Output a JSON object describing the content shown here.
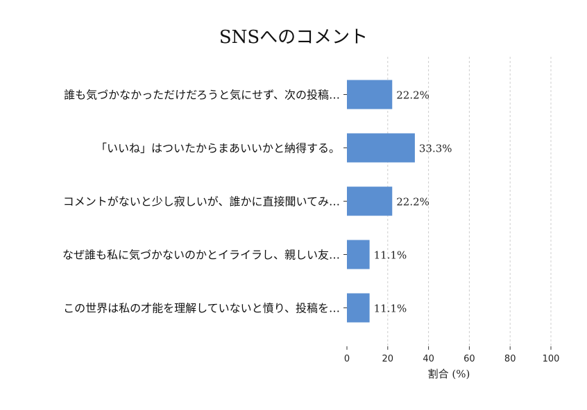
{
  "chart_data": {
    "type": "bar",
    "orientation": "horizontal",
    "title": "SNSへのコメント",
    "xlabel": "割合 (%)",
    "ylabel": "",
    "xlim": [
      0,
      100
    ],
    "xticks": [
      0,
      20,
      40,
      60,
      80,
      100
    ],
    "grid": "x-dashed",
    "color": "#5b8fd1",
    "categories": [
      "誰も気づかなかっただけだろうと気にせず、次の投稿…",
      "「いいね」はついたからまあいいかと納得する。",
      "コメントがないと少し寂しいが、誰かに直接聞いてみ…",
      "なぜ誰も私に気づかないのかとイライラし、親しい友…",
      "この世界は私の才能を理解していないと憤り、投稿を…"
    ],
    "values": [
      22.2,
      33.3,
      22.2,
      11.1,
      11.1
    ],
    "value_labels": [
      "22.2%",
      "33.3%",
      "22.2%",
      "11.1%",
      "11.1%"
    ]
  }
}
